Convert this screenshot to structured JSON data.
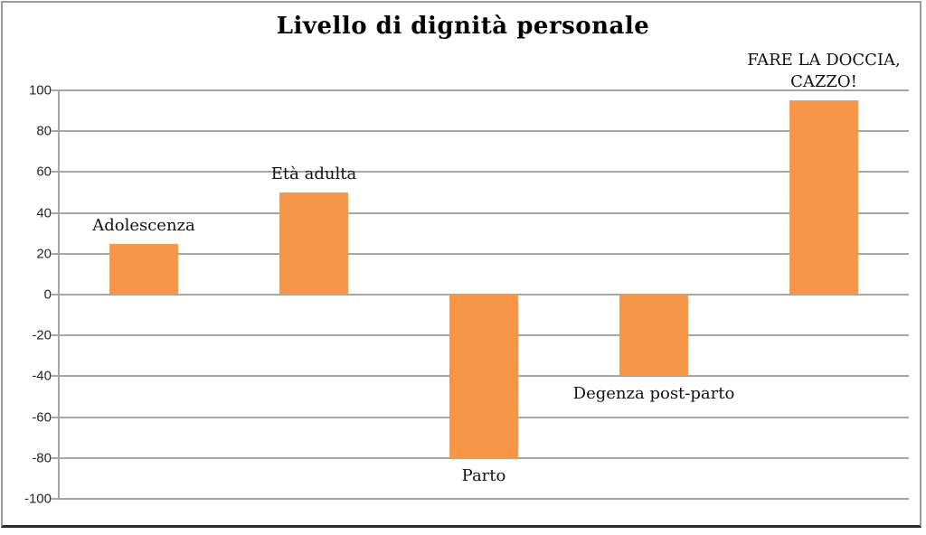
{
  "title": "Livello di dignità personale",
  "colors": {
    "bar": "#f79646",
    "gridline": "#a6a6a6",
    "axis": "#a6a6a6",
    "title_text": "#000000",
    "label_text": "#111111",
    "tick_text": "#262626",
    "frame_border": "#9a9a9a",
    "frame_border_bottom": "#2b2b2b"
  },
  "chart_data": {
    "type": "bar",
    "title": "Livello di dignità personale",
    "categories": [
      "Adolescenza",
      "Età adulta",
      "Parto",
      "Degenza post-parto",
      "FARE LA DOCCIA,\nCAZZO!"
    ],
    "values": [
      25,
      50,
      -80,
      -40,
      95
    ],
    "bar_color": "#f79646",
    "xlabel": "",
    "ylabel": "",
    "ylim": [
      -100,
      100
    ],
    "ytick_step": 20,
    "y_ticks": [
      100,
      80,
      60,
      40,
      20,
      0,
      -20,
      -40,
      -60,
      -80,
      -100
    ],
    "grid": true,
    "legend": false,
    "label_position": "outside-end"
  }
}
